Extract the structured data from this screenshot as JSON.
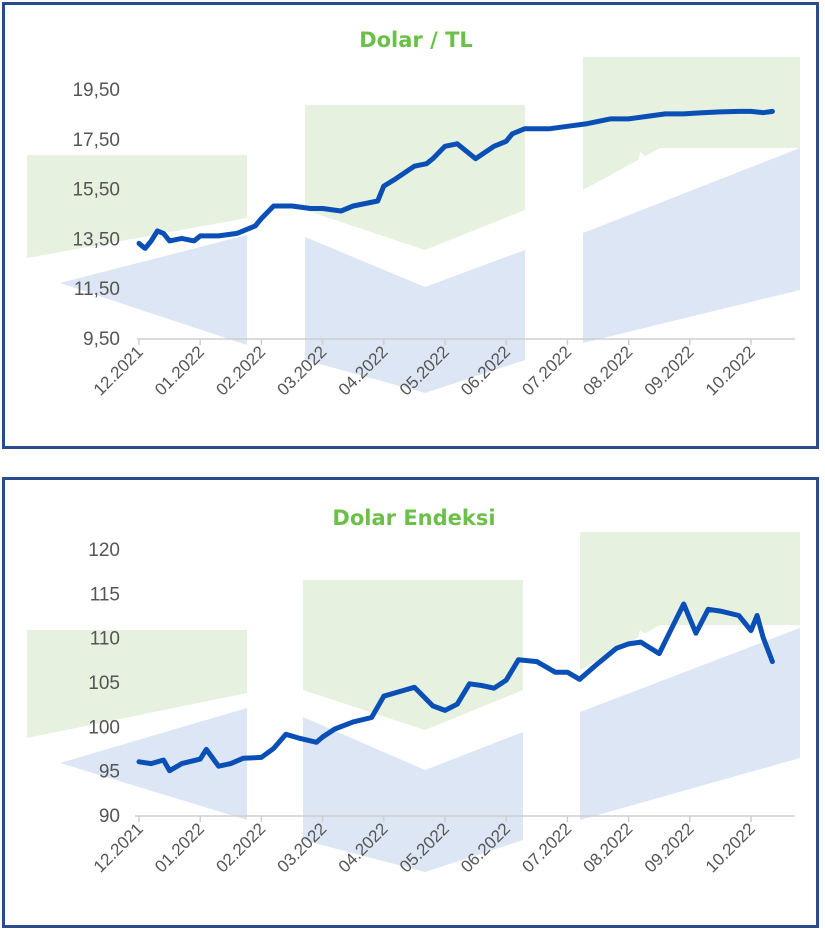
{
  "chart_data": [
    {
      "type": "line",
      "title": "Dolar / TL",
      "xlabel": "",
      "ylabel": "",
      "ylim": [
        9.5,
        19.5
      ],
      "yticks": [
        "19,50",
        "17,50",
        "15,50",
        "13,50",
        "11,50",
        "9,50"
      ],
      "ytick_values": [
        19.5,
        17.5,
        15.5,
        13.5,
        11.5,
        9.5
      ],
      "xticks": [
        "12.2021",
        "01.2022",
        "02.2022",
        "03.2022",
        "04.2022",
        "05.2022",
        "06.2022",
        "07.2022",
        "08.2022",
        "09.2022",
        "10.2022"
      ],
      "grid": false,
      "legend": "none",
      "line_color": "#0a4fb5",
      "series": [
        {
          "x": [
            0,
            0.1,
            0.2,
            0.3,
            0.4,
            0.5,
            0.7,
            0.9,
            1.0,
            1.3,
            1.6,
            1.9,
            2.0,
            2.2,
            2.5,
            2.8,
            3.0,
            3.3,
            3.5,
            3.7,
            3.9,
            4.0,
            4.2,
            4.5,
            4.7,
            4.8,
            5.0,
            5.2,
            5.5,
            5.8,
            6.0,
            6.1,
            6.3,
            6.5,
            6.7,
            7.0,
            7.3,
            7.5,
            7.7,
            8.0,
            8.3,
            8.6,
            8.9,
            9.2,
            9.5,
            9.8,
            10.0,
            10.2,
            10.35
          ],
          "y": [
            13.3,
            13.1,
            13.4,
            13.8,
            13.7,
            13.4,
            13.5,
            13.4,
            13.6,
            13.6,
            13.7,
            14.0,
            14.3,
            14.8,
            14.8,
            14.7,
            14.7,
            14.6,
            14.8,
            14.9,
            15.0,
            15.6,
            15.9,
            16.4,
            16.5,
            16.7,
            17.2,
            17.3,
            16.7,
            17.2,
            17.4,
            17.7,
            17.9,
            17.9,
            17.9,
            18.0,
            18.1,
            18.2,
            18.3,
            18.3,
            18.4,
            18.5,
            18.5,
            18.55,
            18.58,
            18.6,
            18.6,
            18.55,
            18.6
          ]
        }
      ]
    },
    {
      "type": "line",
      "title": "Dolar Endeksi",
      "xlabel": "",
      "ylabel": "",
      "ylim": [
        90,
        120
      ],
      "yticks": [
        "120",
        "115",
        "110",
        "105",
        "100",
        "95",
        "90"
      ],
      "ytick_values": [
        120,
        115,
        110,
        105,
        100,
        95,
        90
      ],
      "xticks": [
        "12.2021",
        "01.2022",
        "02.2022",
        "03.2022",
        "04.2022",
        "05.2022",
        "06.2022",
        "07.2022",
        "08.2022",
        "09.2022",
        "10.2022"
      ],
      "grid": false,
      "legend": "none",
      "line_color": "#0a4fb5",
      "series": [
        {
          "x": [
            0,
            0.2,
            0.4,
            0.5,
            0.7,
            1.0,
            1.1,
            1.3,
            1.5,
            1.7,
            2.0,
            2.2,
            2.4,
            2.6,
            2.9,
            3.0,
            3.2,
            3.5,
            3.8,
            4.0,
            4.2,
            4.5,
            4.8,
            5.0,
            5.2,
            5.4,
            5.6,
            5.8,
            6.0,
            6.2,
            6.5,
            6.8,
            7.0,
            7.2,
            7.5,
            7.8,
            8.0,
            8.2,
            8.5,
            8.7,
            8.9,
            9.1,
            9.3,
            9.5,
            9.8,
            10.0,
            10.1,
            10.2,
            10.35
          ],
          "y": [
            96,
            95.8,
            96.2,
            95,
            95.8,
            96.3,
            97.4,
            95.5,
            95.8,
            96.4,
            96.5,
            97.5,
            99.1,
            98.7,
            98.2,
            98.8,
            99.7,
            100.5,
            101.0,
            103.4,
            103.8,
            104.4,
            102.3,
            101.8,
            102.5,
            104.8,
            104.6,
            104.3,
            105.2,
            107.5,
            107.3,
            106.1,
            106.1,
            105.3,
            107.1,
            108.8,
            109.3,
            109.5,
            108.2,
            111.0,
            113.8,
            110.5,
            113.2,
            113.0,
            112.5,
            110.8,
            112.5,
            110.0,
            107.3
          ]
        }
      ]
    }
  ]
}
